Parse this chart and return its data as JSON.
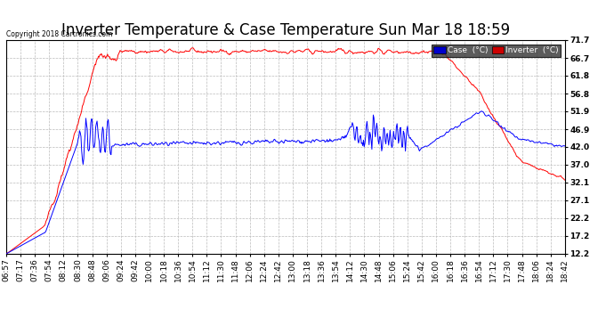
{
  "title": "Inverter Temperature & Case Temperature Sun Mar 18 18:59",
  "copyright": "Copyright 2018 Cartronics.com",
  "legend_labels": [
    "Case  (°C)",
    "Inverter  (°C)"
  ],
  "legend_bg_colors": [
    "#0000cc",
    "#cc0000"
  ],
  "yticks": [
    12.2,
    17.2,
    22.2,
    27.1,
    32.1,
    37.0,
    42.0,
    46.9,
    51.9,
    56.8,
    61.8,
    66.7,
    71.7
  ],
  "xtick_labels": [
    "06:57",
    "07:17",
    "07:36",
    "07:54",
    "08:12",
    "08:30",
    "08:48",
    "09:06",
    "09:24",
    "09:42",
    "10:00",
    "10:18",
    "10:36",
    "10:54",
    "11:12",
    "11:30",
    "11:48",
    "12:06",
    "12:24",
    "12:42",
    "13:00",
    "13:18",
    "13:36",
    "13:54",
    "14:12",
    "14:30",
    "14:48",
    "15:06",
    "15:24",
    "15:42",
    "16:00",
    "16:18",
    "16:36",
    "16:54",
    "17:12",
    "17:30",
    "17:48",
    "18:06",
    "18:24",
    "18:42"
  ],
  "ymin": 12.2,
  "ymax": 71.7,
  "title_fontsize": 12,
  "axis_fontsize": 6.5,
  "bg_color": "#ffffff",
  "grid_color": "#bbbbbb"
}
